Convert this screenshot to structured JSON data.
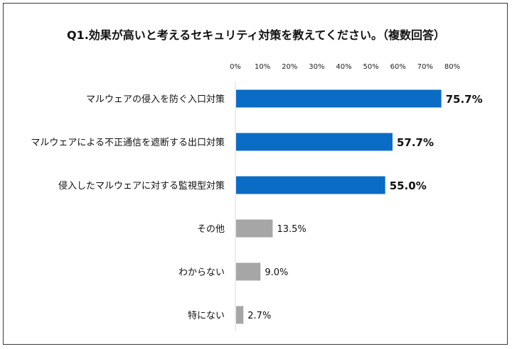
{
  "chart_data": {
    "type": "bar",
    "orientation": "horizontal",
    "title": "Q1.効果が高いと考えるセキュリティ対策を教えてください。（複数回答）",
    "xlabel": "",
    "ylabel": "",
    "xlim": [
      0,
      80
    ],
    "x_ticks": [
      "0%",
      "10%",
      "20%",
      "30%",
      "40%",
      "50%",
      "60%",
      "70%",
      "80%"
    ],
    "grid": false,
    "categories": [
      "マルウェアの侵入を防ぐ入口対策",
      "マルウェアによる不正通信を遮断する出口対策",
      "侵入したマルウェアに対する監視型対策",
      "その他",
      "わからない",
      "特にない"
    ],
    "values": [
      75.7,
      57.7,
      55.0,
      13.5,
      9.0,
      2.7
    ],
    "value_labels": [
      "75.7%",
      "57.7%",
      "55.0%",
      "13.5%",
      "9.0%",
      "2.7%"
    ],
    "highlight": [
      true,
      true,
      true,
      false,
      false,
      false
    ],
    "colors": {
      "primary": "#0a6cc4",
      "secondary": "#a6a6a6"
    }
  }
}
